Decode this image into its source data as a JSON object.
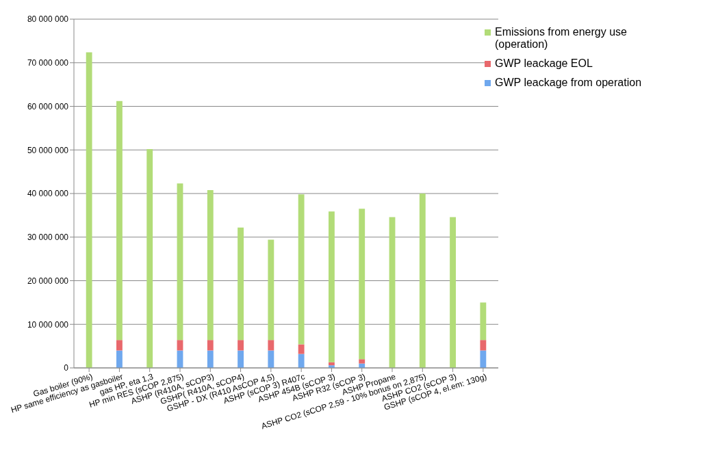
{
  "chart_data": {
    "type": "bar",
    "stacked": true,
    "categories": [
      "Gas boiler (90%)",
      "HP same efficiency as gasboiler",
      "gas HP, eta 1,3",
      "HP min RES (sCOP 2,875)",
      "ASHP (R410A, sCOP3)",
      "GSHP( R410A, sCOP4)",
      "GSHP - DX (R410 AsCOP 4,5)",
      "ASHP (sCOP 3) R407c",
      "ASHP 454B (sCOP 3)",
      "ASHP R32 (sCOP 3)",
      "ASHP Propane",
      "ASHP CO2 (sCOP 2,59 - 10% bonus on 2,875)",
      "ASHP CO2 (sCOP 3)",
      "GSHP (sCOP 4, el.em: 130g)"
    ],
    "series": [
      {
        "name": "GWP leackage from operation",
        "color": "#6fa8ee",
        "values": [
          0,
          4000000,
          0,
          4000000,
          4000000,
          4000000,
          4000000,
          3200000,
          600000,
          1000000,
          0,
          0,
          0,
          4000000
        ]
      },
      {
        "name": "GWP leackage EOL",
        "color": "#e8686c",
        "values": [
          0,
          2400000,
          0,
          2400000,
          2400000,
          2400000,
          2400000,
          2200000,
          700000,
          1000000,
          0,
          0,
          0,
          2400000
        ]
      },
      {
        "name": "Emissions from energy use (operation)",
        "color": "#b2dc78",
        "values": [
          72400000,
          54800000,
          50200000,
          35900000,
          34400000,
          25800000,
          23000000,
          34400000,
          34600000,
          34500000,
          34600000,
          40000000,
          34600000,
          8600000
        ]
      }
    ],
    "ylim": [
      0,
      80000000
    ],
    "yticks": [
      {
        "value": 0,
        "label": "0"
      },
      {
        "value": 10000000,
        "label": "10 000 000"
      },
      {
        "value": 20000000,
        "label": "20 000 000"
      },
      {
        "value": 30000000,
        "label": "30 000 000"
      },
      {
        "value": 40000000,
        "label": "40 000 000"
      },
      {
        "value": 50000000,
        "label": "50 000 000"
      },
      {
        "value": 60000000,
        "label": "60 000 000"
      },
      {
        "value": 70000000,
        "label": "70 000 000"
      },
      {
        "value": 80000000,
        "label": "80 000 000"
      }
    ],
    "grid": "y",
    "legend": "top right"
  }
}
